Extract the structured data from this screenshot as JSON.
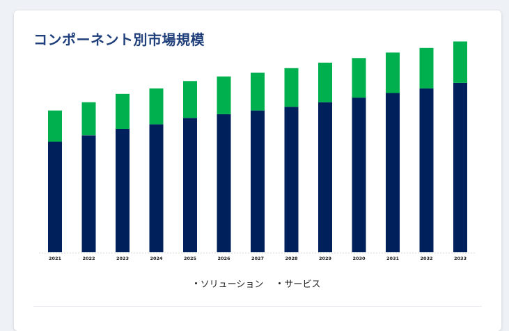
{
  "chart_data": {
    "type": "bar",
    "stacked": true,
    "title": "コンポーネント別市場規模",
    "categories": [
      "2021",
      "2022",
      "2023",
      "2024",
      "2025",
      "2026",
      "2027",
      "2028",
      "2029",
      "2030",
      "2031",
      "2032",
      "2033"
    ],
    "series": [
      {
        "name": "ソリューション",
        "color": "#00205b",
        "values": [
          120,
          127,
          134,
          139,
          146,
          150,
          154,
          158,
          163,
          168,
          173,
          178,
          184
        ]
      },
      {
        "name": "サービス",
        "color": "#00b04f",
        "values": [
          34,
          36,
          38,
          39,
          40,
          41,
          41,
          42,
          43,
          43,
          44,
          44,
          45
        ]
      }
    ],
    "ylim": [
      0,
      240
    ],
    "grid": false,
    "legend": "bottom-center"
  }
}
